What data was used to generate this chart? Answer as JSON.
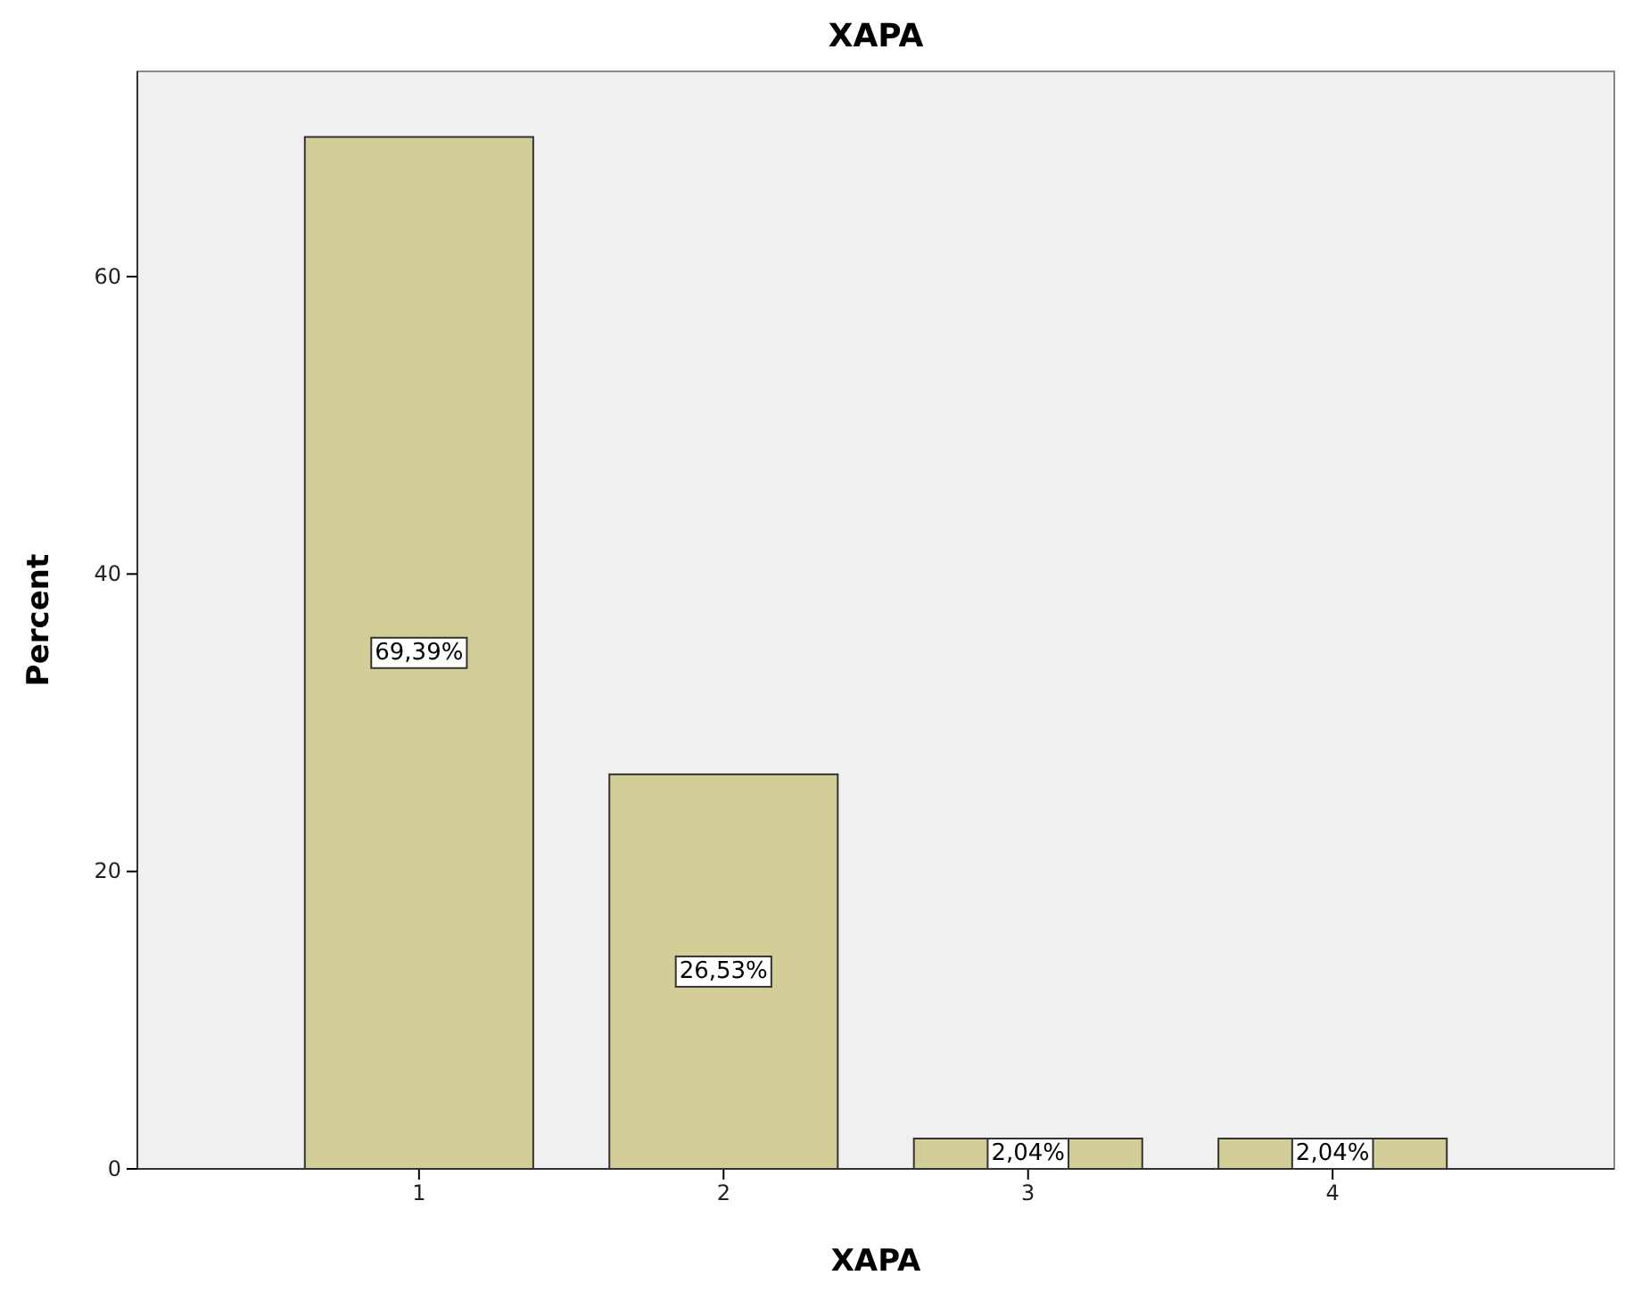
{
  "chart_data": {
    "type": "bar",
    "title": "XAPA",
    "xlabel": "XAPA",
    "ylabel": "Percent",
    "categories": [
      "1",
      "2",
      "3",
      "4"
    ],
    "values": [
      69.39,
      26.53,
      2.04,
      2.04
    ],
    "value_labels": [
      "69,39%",
      "26,53%",
      "2,04%",
      "2,04%"
    ],
    "color": "#d3ce97",
    "ylim": [
      0,
      73.8
    ],
    "yticks": [
      0,
      20,
      40,
      60
    ],
    "grid": false
  }
}
